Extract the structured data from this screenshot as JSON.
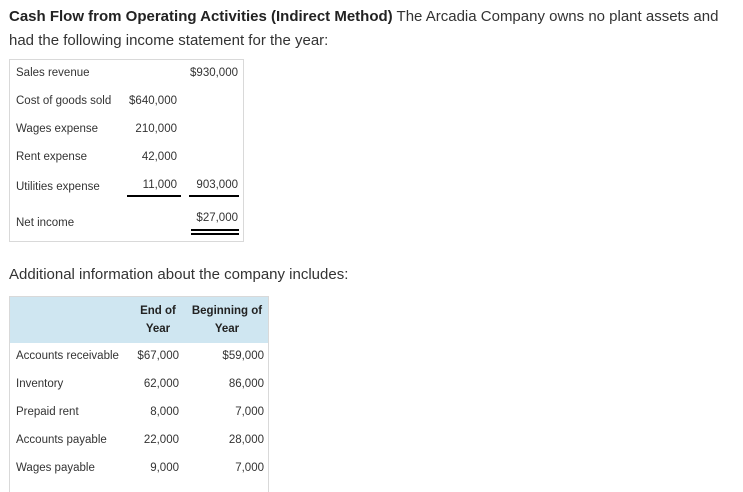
{
  "intro": {
    "title": "Cash Flow from Operating Activities (Indirect Method)",
    "text": " The Arcadia Company owns no plant assets and had the following income statement for the year:"
  },
  "income_statement": {
    "rows": [
      {
        "label": "Sales revenue",
        "col1": "",
        "col2": "$930,000"
      },
      {
        "label": "Cost of goods sold",
        "col1": "$640,000",
        "col2": ""
      },
      {
        "label": "Wages expense",
        "col1": "210,000",
        "col2": ""
      },
      {
        "label": "Rent expense",
        "col1": "42,000",
        "col2": ""
      },
      {
        "label": "Utilities expense",
        "col1": "11,000",
        "col2": "903,000"
      },
      {
        "label": "Net income",
        "col1": "",
        "col2": "$27,000"
      }
    ]
  },
  "additional_info": "Additional information about the company includes:",
  "balances": {
    "headers": [
      {
        "line1": "End of",
        "line2": "Year"
      },
      {
        "line1": "Beginning of",
        "line2": "Year"
      }
    ],
    "rows": [
      {
        "label": "Accounts receivable",
        "end": "$67,000",
        "begin": "$59,000"
      },
      {
        "label": "Inventory",
        "end": "62,000",
        "begin": "86,000"
      },
      {
        "label": "Prepaid rent",
        "end": "8,000",
        "begin": "7,000"
      },
      {
        "label": "Accounts payable",
        "end": "22,000",
        "begin": "28,000"
      },
      {
        "label": "Wages payable",
        "end": "9,000",
        "begin": "7,000"
      }
    ]
  }
}
